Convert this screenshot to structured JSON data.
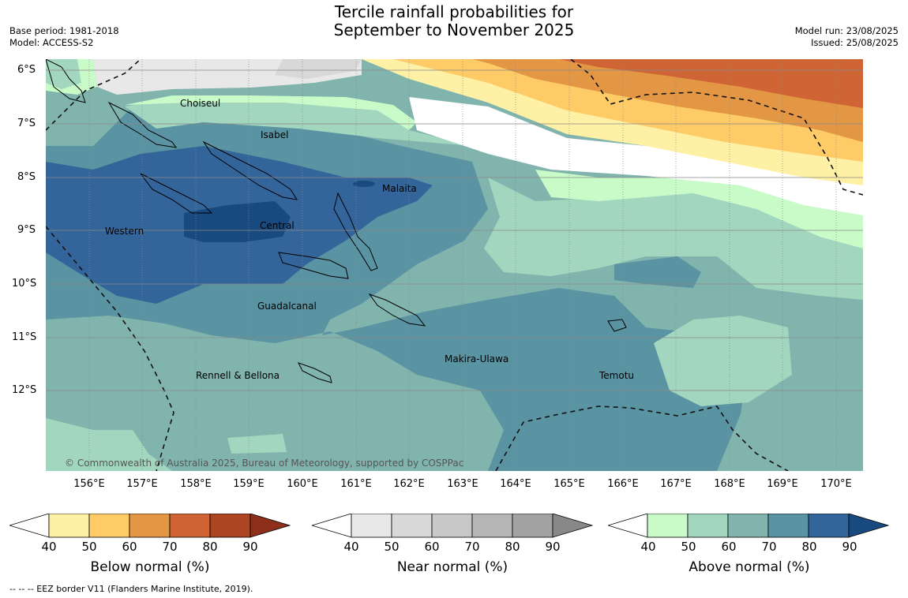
{
  "title_line1": "Tercile rainfall probabilities for",
  "title_line2": "September to November 2025",
  "meta_left": [
    "Base period: 1981-2018",
    "Model: ACCESS-S2"
  ],
  "meta_right": [
    "Model run: 23/08/2025",
    "Issued: 25/08/2025"
  ],
  "copyright": "© Commonwealth of Australia 2025, Bureau of Meteorology, supported by COSPPac",
  "footer": "--  --  -- EEZ border V11 (Flanders Marine Institute, 2019).",
  "lat_labels": [
    "6°S",
    "7°S",
    "8°S",
    "9°S",
    "10°S",
    "11°S",
    "12°S"
  ],
  "lon_labels": [
    "156°E",
    "157°E",
    "158°E",
    "159°E",
    "160°E",
    "161°E",
    "162°E",
    "163°E",
    "164°E",
    "165°E",
    "166°E",
    "167°E",
    "168°E",
    "169°E",
    "170°E"
  ],
  "regions": [
    "Choiseul",
    "Isabel",
    "Malaita",
    "Western",
    "Central",
    "Guadalcanal",
    "Makira-Ulawa",
    "Rennell & Bellona",
    "Temotu"
  ],
  "colorbars": [
    {
      "label": "Below normal (%)",
      "ticks": [
        "40",
        "50",
        "60",
        "70",
        "80",
        "90"
      ],
      "colors": [
        "#ffffff",
        "#fef0a5",
        "#fecb67",
        "#e39644",
        "#cf6434",
        "#ad4422",
        "#8e2f1b"
      ]
    },
    {
      "label": "Near normal (%)",
      "ticks": [
        "40",
        "50",
        "60",
        "70",
        "80",
        "90"
      ],
      "colors": [
        "#ffffff",
        "#e8e8e8",
        "#d8d8d8",
        "#c8c8c8",
        "#b5b5b5",
        "#a2a2a2",
        "#888888"
      ]
    },
    {
      "label": "Above normal (%)",
      "ticks": [
        "40",
        "50",
        "60",
        "70",
        "80",
        "90"
      ],
      "colors": [
        "#ffffff",
        "#c9fbc9",
        "#a2d6be",
        "#80b4ad",
        "#5a93a2",
        "#34659a",
        "#184a80"
      ]
    }
  ]
}
